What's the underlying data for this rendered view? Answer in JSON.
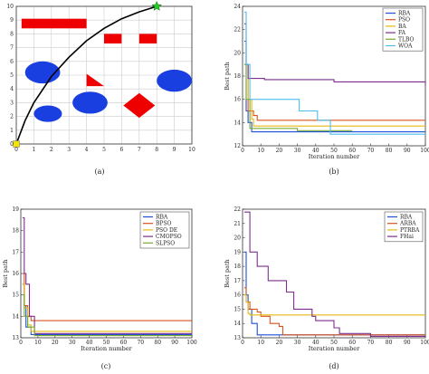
{
  "chart_data": [
    {
      "type": "scatter",
      "panel_caption": "(a)",
      "xlim": [
        0,
        10
      ],
      "ylim": [
        0,
        10
      ],
      "xticks": [
        "0",
        "1",
        "2",
        "3",
        "4",
        "5",
        "6",
        "7",
        "8",
        "9",
        "10"
      ],
      "yticks": [
        "0",
        "1",
        "2",
        "3",
        "4",
        "5",
        "6",
        "7",
        "8",
        "9",
        "10"
      ],
      "grid": true,
      "start": {
        "x": 0,
        "y": 0,
        "marker": "square",
        "color": "#f2e600"
      },
      "goal": {
        "x": 8,
        "y": 10,
        "marker": "star",
        "color": "#22cc22"
      },
      "path": {
        "color": "#000000",
        "x": [
          0,
          0.5,
          1,
          2,
          3,
          4,
          5,
          6,
          7,
          8
        ],
        "y": [
          0,
          1.7,
          3.0,
          4.9,
          6.3,
          7.5,
          8.4,
          9.1,
          9.6,
          10
        ]
      },
      "obstacles": [
        {
          "shape": "rect",
          "x": 0.3,
          "y": 8.4,
          "w": 3.7,
          "h": 0.7,
          "color": "#ee0000"
        },
        {
          "shape": "rect",
          "x": 5.0,
          "y": 7.3,
          "w": 1.0,
          "h": 0.7,
          "color": "#ee0000"
        },
        {
          "shape": "rect",
          "x": 7.0,
          "y": 7.3,
          "w": 1.0,
          "h": 0.7,
          "color": "#ee0000"
        },
        {
          "shape": "triangle",
          "points": [
            [
              4,
              5.1
            ],
            [
              5,
              4.2
            ],
            [
              4,
              4.2
            ]
          ],
          "color": "#ee0000"
        },
        {
          "shape": "diamond",
          "cx": 7,
          "cy": 2.8,
          "r": 0.9,
          "color": "#ee0000"
        },
        {
          "shape": "ellipse",
          "cx": 1.5,
          "cy": 5.2,
          "rx": 1.0,
          "ry": 0.8,
          "color": "#1a3fe0"
        },
        {
          "shape": "ellipse",
          "cx": 4.2,
          "cy": 3.0,
          "rx": 1.0,
          "ry": 0.8,
          "color": "#1a3fe0"
        },
        {
          "shape": "ellipse",
          "cx": 9.0,
          "cy": 4.6,
          "rx": 1.0,
          "ry": 0.8,
          "color": "#1a3fe0"
        },
        {
          "shape": "ellipse",
          "cx": 1.8,
          "cy": 2.2,
          "rx": 0.8,
          "ry": 0.6,
          "color": "#1a3fe0"
        }
      ]
    },
    {
      "type": "line",
      "panel_caption": "(b)",
      "xlabel": "Iteration number",
      "ylabel": "Best path",
      "xlim": [
        0,
        100
      ],
      "ylim": [
        12,
        24
      ],
      "xticks": [
        "0",
        "10",
        "20",
        "30",
        "40",
        "50",
        "60",
        "70",
        "80",
        "90",
        "100"
      ],
      "yticks": [
        "12",
        "14",
        "16",
        "18",
        "20",
        "22",
        "24"
      ],
      "legend_position": "top-right",
      "series": [
        {
          "name": "RBA",
          "color": "#1f4fd8",
          "x": [
            1,
            2,
            3,
            5,
            100
          ],
          "y": [
            21.0,
            15.0,
            14.0,
            13.2,
            13.2
          ]
        },
        {
          "name": "PSO",
          "color": "#d9531e",
          "x": [
            1,
            3,
            6,
            8,
            100
          ],
          "y": [
            19.0,
            15.0,
            14.6,
            14.2,
            14.2
          ]
        },
        {
          "name": "BA",
          "color": "#e8b90f",
          "x": [
            1,
            3,
            5,
            6,
            100
          ],
          "y": [
            19.0,
            16.0,
            14.3,
            13.7,
            13.7
          ]
        },
        {
          "name": "FA",
          "color": "#7e2f8e",
          "x": [
            1,
            2,
            3,
            12,
            50,
            100
          ],
          "y": [
            22.5,
            19.0,
            17.8,
            17.7,
            17.5,
            17.2
          ]
        },
        {
          "name": "TLBO",
          "color": "#77ac30",
          "x": [
            1,
            2,
            4,
            30,
            60
          ],
          "y": [
            19.0,
            16.0,
            13.5,
            13.3,
            13.3
          ]
        },
        {
          "name": "WOA",
          "color": "#4dbeee",
          "x": [
            1,
            2,
            4,
            30,
            31,
            40,
            41,
            48,
            100
          ],
          "y": [
            23.5,
            19.0,
            16.0,
            16.0,
            15.0,
            15.0,
            14.2,
            13.0,
            13.0
          ]
        }
      ]
    },
    {
      "type": "line",
      "panel_caption": "(c)",
      "xlabel": "Iteration number",
      "ylabel": "Best path",
      "xlim": [
        0,
        100
      ],
      "ylim": [
        13,
        19
      ],
      "xticks": [
        "0",
        "10",
        "20",
        "30",
        "40",
        "50",
        "60",
        "70",
        "80",
        "90",
        "100"
      ],
      "yticks": [
        "13",
        "14",
        "15",
        "16",
        "17",
        "18",
        "19"
      ],
      "legend_position": "top-right",
      "series": [
        {
          "name": "RBA",
          "color": "#1f4fd8",
          "x": [
            1,
            2,
            3,
            6,
            100
          ],
          "y": [
            15.5,
            14.5,
            13.5,
            13.15,
            13.15
          ]
        },
        {
          "name": "BPSO",
          "color": "#d9531e",
          "x": [
            1,
            2,
            4,
            6,
            100
          ],
          "y": [
            16.0,
            14.5,
            14.0,
            13.8,
            13.8
          ]
        },
        {
          "name": "PSO DE",
          "color": "#e8b90f",
          "x": [
            1,
            2,
            4,
            6,
            100
          ],
          "y": [
            15.5,
            14.4,
            13.6,
            13.3,
            13.3
          ]
        },
        {
          "name": "CMOPSO",
          "color": "#7e2f8e",
          "x": [
            1,
            2,
            3,
            5,
            8,
            100
          ],
          "y": [
            18.6,
            16.0,
            15.5,
            14.0,
            13.2,
            13.2
          ]
        },
        {
          "name": "SLPSO",
          "color": "#77ac30",
          "x": [
            1,
            2,
            4,
            8,
            100
          ],
          "y": [
            15.0,
            14.0,
            13.5,
            13.1,
            13.1
          ]
        }
      ]
    },
    {
      "type": "line",
      "panel_caption": "(d)",
      "xlabel": "Iteration number",
      "ylabel": "Best path",
      "xlim": [
        0,
        100
      ],
      "ylim": [
        13,
        22
      ],
      "xticks": [
        "0",
        "10",
        "20",
        "30",
        "40",
        "50",
        "60",
        "70",
        "80",
        "90",
        "100"
      ],
      "yticks": [
        "13",
        "14",
        "15",
        "16",
        "17",
        "18",
        "19",
        "20",
        "21",
        "22"
      ],
      "legend_position": "top-right",
      "series": [
        {
          "name": "RBA",
          "color": "#1f4fd8",
          "x": [
            1,
            2,
            3,
            5,
            8,
            100
          ],
          "y": [
            19.0,
            16.0,
            15.0,
            14.0,
            13.2,
            13.2
          ]
        },
        {
          "name": "ARBA",
          "color": "#d9531e",
          "x": [
            1,
            2,
            4,
            8,
            10,
            15,
            20,
            22,
            100
          ],
          "y": [
            16.5,
            15.5,
            15.0,
            14.8,
            14.5,
            14.0,
            13.8,
            13.2,
            13.2
          ]
        },
        {
          "name": "PTRBA",
          "color": "#e8b90f",
          "x": [
            1,
            2,
            3,
            4,
            100
          ],
          "y": [
            16.0,
            15.5,
            14.7,
            14.6,
            14.6
          ]
        },
        {
          "name": "FHai",
          "color": "#7e2f8e",
          "x": [
            1,
            4,
            8,
            14,
            24,
            28,
            38,
            40,
            50,
            53,
            66,
            70,
            100
          ],
          "y": [
            21.8,
            19.0,
            18.0,
            17.0,
            16.2,
            15.0,
            14.5,
            14.2,
            13.7,
            13.3,
            13.3,
            13.1,
            13.1
          ]
        }
      ]
    }
  ]
}
